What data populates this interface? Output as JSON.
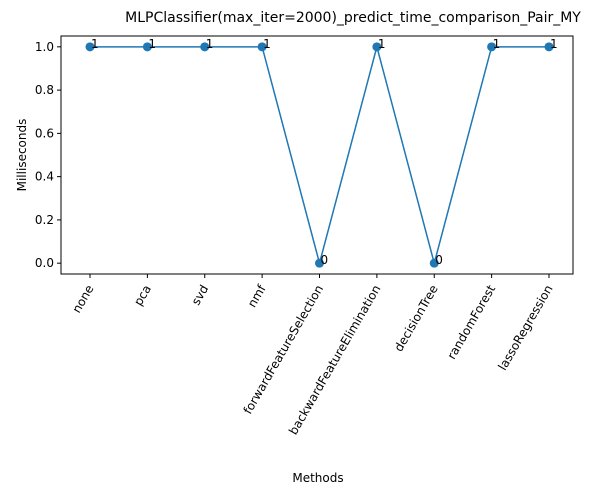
{
  "chart_data": {
    "type": "line",
    "title": "MLPClassifier(max_iter=2000)_predict_time_comparison_Pair_MY",
    "xlabel": "Methods",
    "ylabel": "Milliseconds",
    "categories": [
      "none",
      "pca",
      "svd",
      "nmf",
      "forwardFeatureSelection",
      "backwardFeatureElimination",
      "decisionTree",
      "randomForest",
      "lassoRegression"
    ],
    "values": [
      1,
      1,
      1,
      1,
      0,
      1,
      0,
      1,
      1
    ],
    "data_labels": [
      "1",
      "1",
      "1",
      "1",
      "0",
      "1",
      "0",
      "1",
      "1"
    ],
    "ylim": [
      -0.05,
      1.05
    ],
    "yticks": [
      0.0,
      0.2,
      0.4,
      0.6,
      0.8,
      1.0
    ],
    "ytick_labels": [
      "0.0",
      "0.2",
      "0.4",
      "0.6",
      "0.8",
      "1.0"
    ],
    "grid": false,
    "legend": "none",
    "line_color": "#1f77b4",
    "marker": "circle"
  }
}
